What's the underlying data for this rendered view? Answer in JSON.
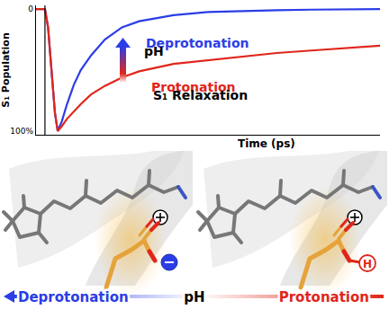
{
  "chart_data": {
    "type": "line",
    "y_label": "S₁ Population",
    "x_label": "Time (ps)",
    "xlim": [
      0,
      100
    ],
    "ylim": [
      103,
      -3
    ],
    "yticks": [
      0,
      {
        "value": 100,
        "label": "100%"
      }
    ],
    "tick_labels": "y",
    "grid": false,
    "vlines": [
      2.6
    ],
    "annotations": [
      "pH",
      "S₁ Relaxation"
    ],
    "x": [
      0,
      2,
      2.6,
      3.5,
      4.5,
      5.5,
      6.3,
      7.5,
      9,
      11,
      13,
      16,
      20,
      25,
      30,
      40,
      50,
      60,
      70,
      80,
      90,
      100
    ],
    "series": [
      {
        "name": "Deprotonation",
        "color": "#2b3de6",
        "line_style": "solid",
        "values": [
          0,
          0,
          0,
          15,
          50,
          85,
          100,
          92,
          78,
          62,
          50,
          38,
          25,
          15,
          10,
          5,
          2.5,
          1.5,
          1,
          0.5,
          0.3,
          0
        ]
      },
      {
        "name": "Protonation",
        "color": "#e0261b",
        "line_style": "solid",
        "values": [
          0,
          0,
          0,
          15,
          50,
          85,
          100,
          96,
          90,
          84,
          78,
          70,
          63,
          56,
          51,
          45,
          42,
          39,
          36,
          34,
          32,
          30
        ]
      }
    ]
  },
  "diagram": {
    "left_label": "Deprotonation",
    "center_label": "pH",
    "right_label": "Protonation",
    "hydrogen": "H"
  }
}
